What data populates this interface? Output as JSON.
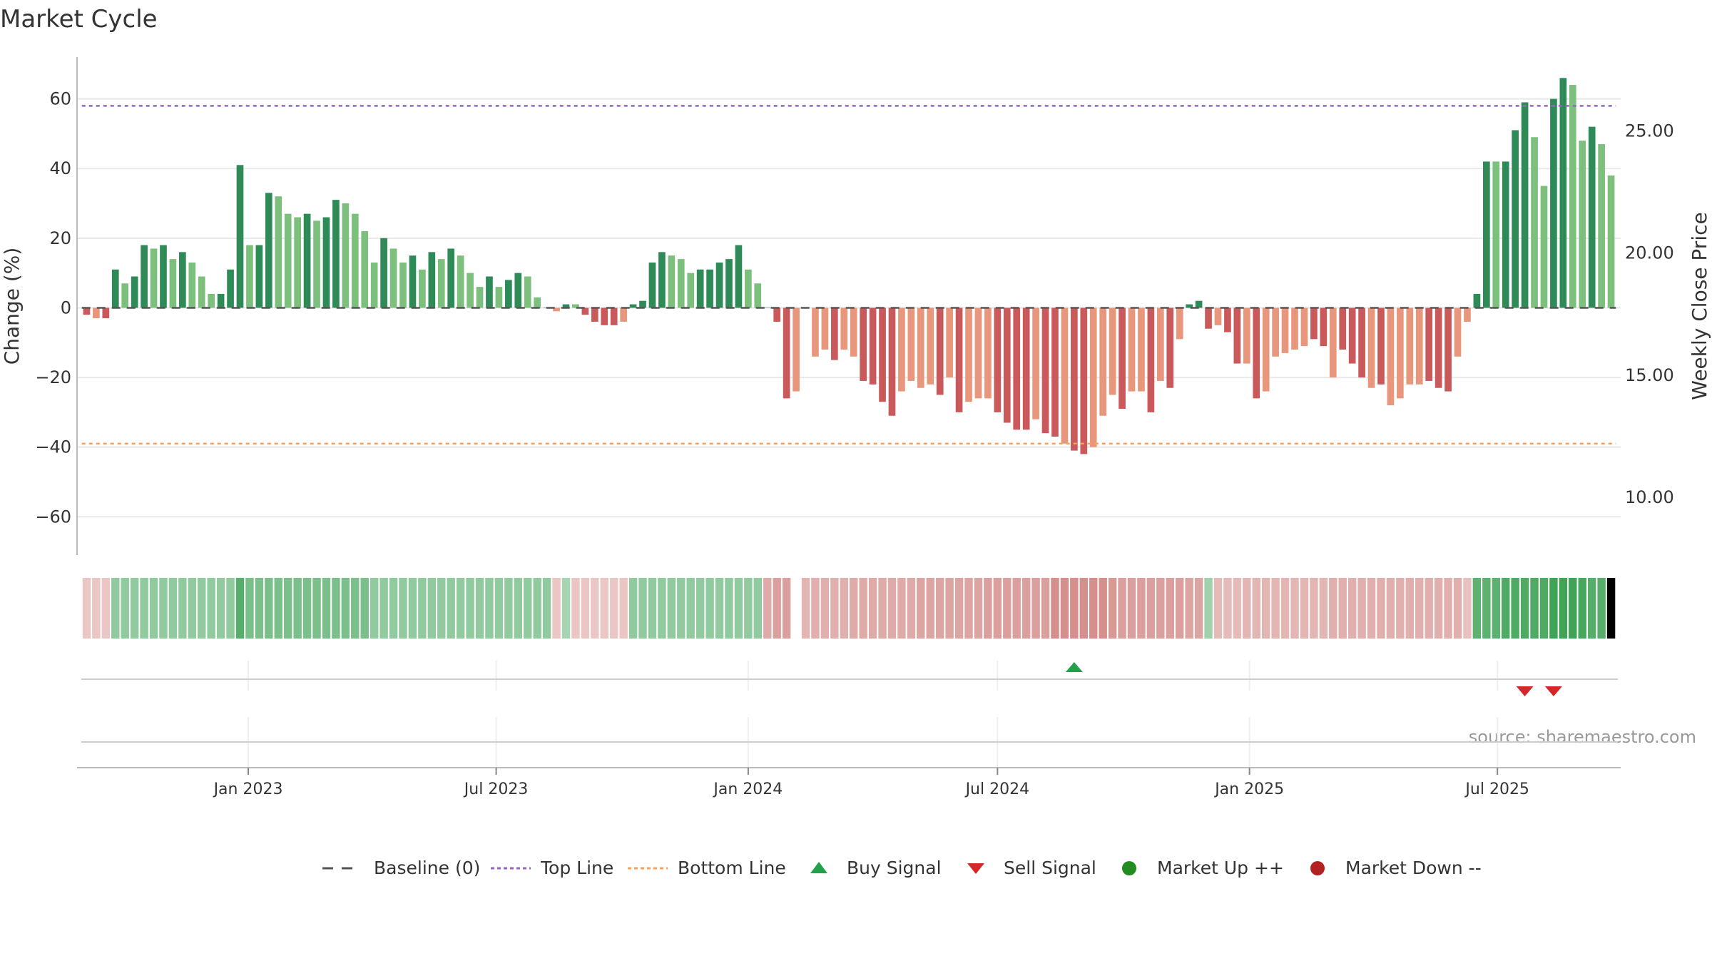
{
  "title": "Market Cycle",
  "source": "source: sharemaestro.com",
  "colors": {
    "up_strong": "#2e8b57",
    "up_weak": "#7dbf7d",
    "down_strong": "#c9595a",
    "down_weak": "#e8977c",
    "top_line": "#9467bd",
    "bottom_line": "#f4a261",
    "buy": "#22a04a",
    "sell": "#d62728",
    "market_up": "#228b22",
    "market_down": "#b22222",
    "baseline": "#555555",
    "grid": "#e8e8e8",
    "axis": "#bbbbbb"
  },
  "legend": [
    {
      "label": "Baseline (0)",
      "icon": "dash-line-icon",
      "color": "#555555"
    },
    {
      "label": "Top Line",
      "icon": "dotted-line-icon",
      "color": "#9467bd"
    },
    {
      "label": "Bottom Line",
      "icon": "dotted-line-icon",
      "color": "#f4a261"
    },
    {
      "label": "Buy Signal",
      "icon": "triangle-up-icon",
      "color": "#22a04a"
    },
    {
      "label": "Sell Signal",
      "icon": "triangle-down-icon",
      "color": "#d62728"
    },
    {
      "label": "Market Up ++",
      "icon": "circle-icon",
      "color": "#228b22"
    },
    {
      "label": "Market Down --",
      "icon": "circle-icon",
      "color": "#b22222"
    }
  ],
  "chart_data": {
    "type": "bar",
    "title": "Market Cycle",
    "ylabel": "Change (%)",
    "ylabel_right": "Weekly Close Price",
    "ylim": [
      -71,
      72
    ],
    "yticks": [
      -60,
      -40,
      -20,
      0,
      20,
      40,
      60
    ],
    "ytick_labels": [
      "−60",
      "−40",
      "−20",
      "0",
      "20",
      "40",
      "60"
    ],
    "y2lim": [
      7.6,
      28.0
    ],
    "y2ticks": [
      10,
      15,
      20,
      25
    ],
    "y2tick_labels": [
      "10.00",
      "15.00",
      "20.00",
      "25.00"
    ],
    "xlim": [
      "2022-08-29",
      "2025-09-29"
    ],
    "xticks": [
      "2023-01-01",
      "2023-07-01",
      "2024-01-01",
      "2024-07-01",
      "2025-01-01",
      "2025-07-01"
    ],
    "xtick_labels": [
      "Jan 2023",
      "Jul 2023",
      "Jan 2024",
      "Jul 2024",
      "Jan 2025",
      "Jul 2025"
    ],
    "top_line": 58,
    "bottom_line": -39,
    "baseline": 0,
    "grid": true,
    "legend_position": "bottom-center",
    "start_week": "2022-09-05",
    "values": [
      -2,
      -3,
      -3,
      11,
      7,
      9,
      18,
      17,
      18,
      14,
      16,
      13,
      9,
      4,
      4,
      11,
      41,
      18,
      18,
      33,
      32,
      27,
      26,
      27,
      25,
      26,
      31,
      30,
      27,
      22,
      13,
      20,
      17,
      13,
      15,
      11,
      16,
      14,
      17,
      15,
      10,
      6,
      9,
      6,
      8,
      10,
      9,
      3,
      0,
      -1,
      1,
      1,
      -2,
      -4,
      -5,
      -5,
      -4,
      1,
      2,
      13,
      16,
      15,
      14,
      10,
      11,
      11,
      13,
      14,
      18,
      11,
      7,
      0,
      -4,
      -26,
      -24,
      0,
      -14,
      -12,
      -15,
      -12,
      -14,
      -21,
      -22,
      -27,
      -31,
      -24,
      -21,
      -23,
      -22,
      -25,
      -20,
      -30,
      -27,
      -26,
      -26,
      -30,
      -33,
      -35,
      -35,
      -32,
      -36,
      -37,
      -39,
      -41,
      -42,
      -40,
      -31,
      -25,
      -29,
      -24,
      -24,
      -30,
      -21,
      -23,
      -9,
      1,
      2,
      -6,
      -5,
      -7,
      -16,
      -16,
      -26,
      -24,
      -14,
      -13,
      -12,
      -11,
      -9,
      -11,
      -20,
      -12,
      -16,
      -20,
      -23,
      -22,
      -28,
      -26,
      -22,
      -22,
      -21,
      -23,
      -24,
      -14,
      -4,
      4,
      42,
      42,
      42,
      51,
      59,
      49,
      35,
      60,
      66,
      64,
      48,
      52,
      47,
      38
    ],
    "bar_shade": [
      "s",
      "w",
      "s",
      "s",
      "w",
      "s",
      "s",
      "w",
      "s",
      "w",
      "s",
      "w",
      "w",
      "w",
      "s",
      "s",
      "s",
      "w",
      "s",
      "s",
      "w",
      "w",
      "w",
      "s",
      "w",
      "s",
      "s",
      "w",
      "w",
      "w",
      "w",
      "s",
      "w",
      "w",
      "s",
      "w",
      "s",
      "w",
      "s",
      "w",
      "w",
      "w",
      "s",
      "w",
      "s",
      "s",
      "w",
      "w",
      "s",
      "w",
      "s",
      "w",
      "s",
      "s",
      "s",
      "s",
      "w",
      "s",
      "s",
      "s",
      "s",
      "w",
      "w",
      "w",
      "s",
      "s",
      "s",
      "s",
      "s",
      "w",
      "w",
      "s",
      "s",
      "s",
      "w",
      "s",
      "w",
      "w",
      "s",
      "w",
      "w",
      "s",
      "s",
      "s",
      "s",
      "w",
      "w",
      "w",
      "w",
      "s",
      "w",
      "s",
      "w",
      "w",
      "w",
      "s",
      "s",
      "s",
      "s",
      "w",
      "s",
      "s",
      "w",
      "s",
      "s",
      "w",
      "w",
      "w",
      "s",
      "w",
      "w",
      "s",
      "w",
      "s",
      "w",
      "s",
      "s",
      "s",
      "w",
      "s",
      "s",
      "w",
      "s",
      "w",
      "w",
      "w",
      "w",
      "w",
      "s",
      "s",
      "w",
      "s",
      "s",
      "s",
      "w",
      "s",
      "w",
      "w",
      "w",
      "w",
      "s",
      "s",
      "s",
      "w",
      "w",
      "s",
      "s",
      "w",
      "s",
      "s",
      "s",
      "w",
      "w",
      "s",
      "s",
      "w",
      "w",
      "s",
      "w",
      "w"
    ],
    "heat": [
      -0.25,
      -0.25,
      -0.25,
      0.45,
      0.45,
      0.45,
      0.45,
      0.45,
      0.45,
      0.45,
      0.45,
      0.45,
      0.45,
      0.45,
      0.45,
      0.45,
      0.85,
      0.6,
      0.6,
      0.6,
      0.6,
      0.6,
      0.6,
      0.6,
      0.6,
      0.6,
      0.6,
      0.6,
      0.6,
      0.6,
      0.45,
      0.45,
      0.45,
      0.45,
      0.45,
      0.45,
      0.45,
      0.45,
      0.45,
      0.45,
      0.45,
      0.45,
      0.45,
      0.45,
      0.45,
      0.45,
      0.45,
      0.45,
      0.45,
      -0.25,
      0.3,
      -0.25,
      -0.25,
      -0.25,
      -0.25,
      -0.25,
      -0.25,
      0.45,
      0.45,
      0.45,
      0.45,
      0.45,
      0.45,
      0.45,
      0.45,
      0.45,
      0.45,
      0.45,
      0.45,
      0.45,
      0.45,
      -0.5,
      -0.6,
      -0.6,
      0,
      -0.4,
      -0.45,
      -0.45,
      -0.45,
      -0.45,
      -0.5,
      -0.5,
      -0.5,
      -0.5,
      -0.5,
      -0.5,
      -0.5,
      -0.55,
      -0.55,
      -0.55,
      -0.55,
      -0.55,
      -0.55,
      -0.55,
      -0.6,
      -0.6,
      -0.6,
      -0.6,
      -0.6,
      -0.6,
      -0.6,
      -0.75,
      -0.75,
      -0.75,
      -0.75,
      -0.75,
      -0.75,
      -0.65,
      -0.6,
      -0.6,
      -0.6,
      -0.6,
      -0.6,
      -0.6,
      -0.6,
      -0.55,
      -0.55,
      0.35,
      -0.35,
      -0.35,
      -0.35,
      -0.4,
      -0.4,
      -0.4,
      -0.4,
      -0.4,
      -0.4,
      -0.4,
      -0.4,
      -0.4,
      -0.45,
      -0.45,
      -0.45,
      -0.45,
      -0.45,
      -0.45,
      -0.45,
      -0.45,
      -0.45,
      -0.45,
      -0.45,
      -0.45,
      -0.45,
      -0.45,
      -0.3,
      0.8,
      0.8,
      0.8,
      0.9,
      0.9,
      0.9,
      0.9,
      0.9,
      1,
      1,
      1,
      0.95,
      0.85,
      0.85
    ],
    "buy_signals": [
      "2024-08-26"
    ],
    "sell_signals": [
      "2025-07-21",
      "2025-08-11"
    ]
  }
}
